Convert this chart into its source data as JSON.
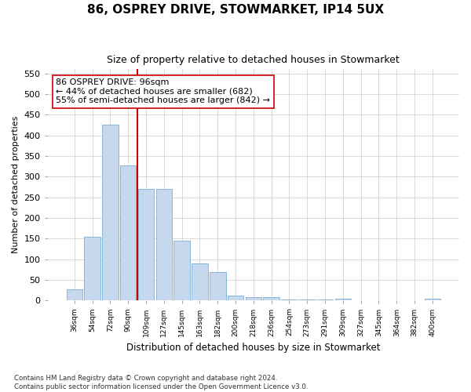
{
  "title": "86, OSPREY DRIVE, STOWMARKET, IP14 5UX",
  "subtitle": "Size of property relative to detached houses in Stowmarket",
  "xlabel": "Distribution of detached houses by size in Stowmarket",
  "ylabel": "Number of detached properties",
  "categories": [
    "36sqm",
    "54sqm",
    "72sqm",
    "90sqm",
    "109sqm",
    "127sqm",
    "145sqm",
    "163sqm",
    "182sqm",
    "200sqm",
    "218sqm",
    "236sqm",
    "254sqm",
    "273sqm",
    "291sqm",
    "309sqm",
    "327sqm",
    "345sqm",
    "364sqm",
    "382sqm",
    "400sqm"
  ],
  "values": [
    27,
    155,
    425,
    327,
    270,
    270,
    145,
    90,
    68,
    12,
    9,
    9,
    3,
    3,
    3,
    4,
    1,
    1,
    1,
    1,
    4
  ],
  "bar_color": "#c5d8ee",
  "bar_edge_color": "#7aafd4",
  "vline_color": "#cc0000",
  "vline_pos": 3.5,
  "annotation_text": "86 OSPREY DRIVE: 96sqm\n← 44% of detached houses are smaller (682)\n55% of semi-detached houses are larger (842) →",
  "annotation_box_color": "#ffffff",
  "annotation_box_edge": "#cc0000",
  "ylim": [
    0,
    560
  ],
  "yticks": [
    0,
    50,
    100,
    150,
    200,
    250,
    300,
    350,
    400,
    450,
    500,
    550
  ],
  "footer": "Contains HM Land Registry data © Crown copyright and database right 2024.\nContains public sector information licensed under the Open Government Licence v3.0.",
  "bg_color": "#ffffff",
  "plot_bg_color": "#ffffff",
  "grid_color": "#cccccc"
}
